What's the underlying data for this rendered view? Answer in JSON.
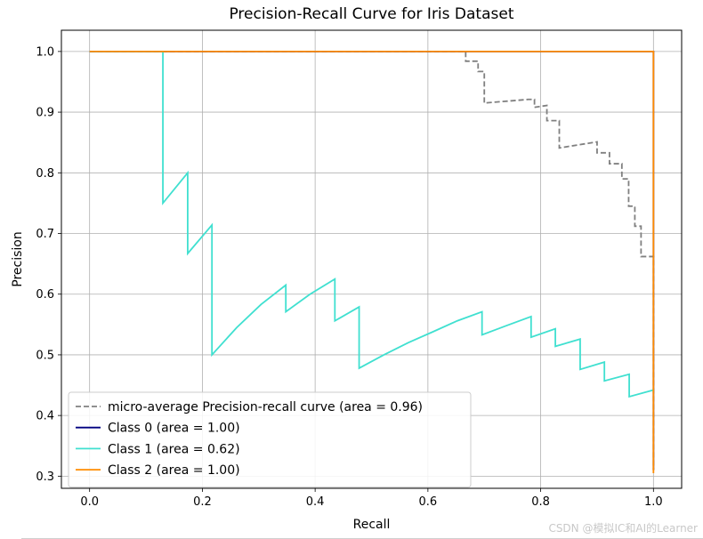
{
  "chart_data": {
    "type": "line",
    "title": "Precision-Recall Curve for Iris Dataset",
    "xlabel": "Recall",
    "ylabel": "Precision",
    "xlim": [
      -0.05,
      1.05
    ],
    "ylim": [
      0.28,
      1.035
    ],
    "xticks": [
      0.0,
      0.2,
      0.4,
      0.6,
      0.8,
      1.0
    ],
    "xtick_labels": [
      "0.0",
      "0.2",
      "0.4",
      "0.6",
      "0.8",
      "1.0"
    ],
    "yticks": [
      0.3,
      0.4,
      0.5,
      0.6,
      0.7,
      0.8,
      0.9,
      1.0
    ],
    "ytick_labels": [
      "0.3",
      "0.4",
      "0.5",
      "0.6",
      "0.7",
      "0.8",
      "0.9",
      "1.0"
    ],
    "grid": true,
    "legend_position": "lower-left",
    "series": [
      {
        "name": "micro-average Precision-recall curve (area = 0.96)",
        "color": "#808080",
        "style": "dashed",
        "points": [
          [
            0.0,
            1.0
          ],
          [
            0.667,
            1.0
          ],
          [
            0.667,
            0.984
          ],
          [
            0.689,
            0.984
          ],
          [
            0.689,
            0.967
          ],
          [
            0.7,
            0.967
          ],
          [
            0.7,
            0.915
          ],
          [
            0.778,
            0.921
          ],
          [
            0.789,
            0.921
          ],
          [
            0.789,
            0.908
          ],
          [
            0.811,
            0.911
          ],
          [
            0.811,
            0.886
          ],
          [
            0.833,
            0.886
          ],
          [
            0.833,
            0.841
          ],
          [
            0.9,
            0.851
          ],
          [
            0.9,
            0.833
          ],
          [
            0.922,
            0.833
          ],
          [
            0.922,
            0.815
          ],
          [
            0.944,
            0.815
          ],
          [
            0.944,
            0.79
          ],
          [
            0.956,
            0.79
          ],
          [
            0.956,
            0.745
          ],
          [
            0.967,
            0.745
          ],
          [
            0.967,
            0.712
          ],
          [
            0.978,
            0.712
          ],
          [
            0.978,
            0.662
          ],
          [
            0.989,
            0.662
          ],
          [
            1.0,
            0.662
          ],
          [
            1.0,
            0.31
          ]
        ]
      },
      {
        "name": "Class 0 (area = 1.00)",
        "color": "#000080",
        "style": "solid",
        "points": [
          [
            0.0,
            1.0
          ],
          [
            1.0,
            1.0
          ],
          [
            1.0,
            0.31
          ]
        ]
      },
      {
        "name": "Class 1 (area = 0.62)",
        "color": "#40e0d0",
        "style": "solid",
        "points": [
          [
            0.0,
            1.0
          ],
          [
            0.13,
            1.0
          ],
          [
            0.13,
            0.75
          ],
          [
            0.174,
            0.8
          ],
          [
            0.174,
            0.667
          ],
          [
            0.217,
            0.714
          ],
          [
            0.217,
            0.5
          ],
          [
            0.261,
            0.545
          ],
          [
            0.304,
            0.583
          ],
          [
            0.348,
            0.615
          ],
          [
            0.348,
            0.571
          ],
          [
            0.391,
            0.6
          ],
          [
            0.435,
            0.625
          ],
          [
            0.435,
            0.556
          ],
          [
            0.478,
            0.579
          ],
          [
            0.478,
            0.478
          ],
          [
            0.522,
            0.5
          ],
          [
            0.565,
            0.52
          ],
          [
            0.609,
            0.538
          ],
          [
            0.652,
            0.556
          ],
          [
            0.696,
            0.571
          ],
          [
            0.696,
            0.533
          ],
          [
            0.739,
            0.548
          ],
          [
            0.783,
            0.563
          ],
          [
            0.783,
            0.529
          ],
          [
            0.826,
            0.543
          ],
          [
            0.826,
            0.514
          ],
          [
            0.87,
            0.526
          ],
          [
            0.87,
            0.476
          ],
          [
            0.913,
            0.488
          ],
          [
            0.913,
            0.457
          ],
          [
            0.957,
            0.468
          ],
          [
            0.957,
            0.431
          ],
          [
            1.0,
            0.442
          ]
        ]
      },
      {
        "name": "Class 2 (area = 1.00)",
        "color": "#ff8c00",
        "style": "solid",
        "points": [
          [
            0.0,
            1.0
          ],
          [
            1.0,
            1.0
          ],
          [
            1.0,
            0.305
          ]
        ]
      }
    ]
  },
  "watermark": "CSDN @模拟IC和AI的Learner"
}
